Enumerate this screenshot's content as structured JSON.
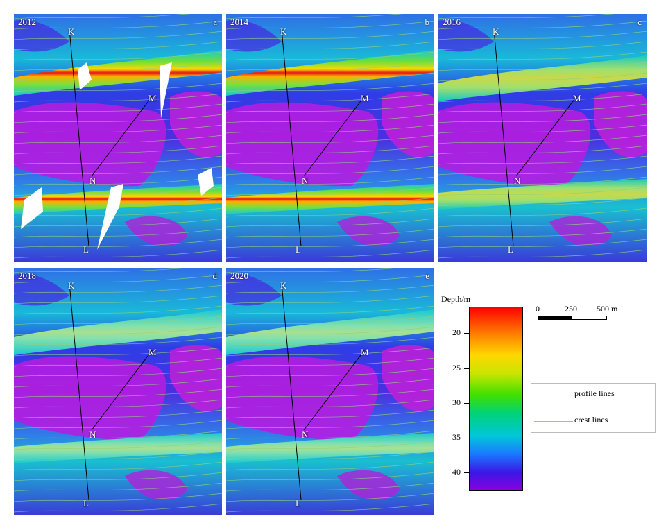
{
  "panels": [
    {
      "year": "2012",
      "letter": "a",
      "labels": {
        "K": "K",
        "L": "L",
        "M": "M",
        "N": "N"
      },
      "style": "ridge",
      "gaps": true
    },
    {
      "year": "2014",
      "letter": "b",
      "labels": {
        "K": "K",
        "L": "L",
        "M": "M",
        "N": "N"
      },
      "style": "ridge",
      "gaps": false
    },
    {
      "year": "2016",
      "letter": "c",
      "labels": {
        "K": "K",
        "L": "L",
        "M": "M",
        "N": "N"
      },
      "style": "rough",
      "gaps": false
    },
    {
      "year": "2018",
      "letter": "d",
      "labels": {
        "K": "K",
        "L": "L",
        "M": "M",
        "N": "N"
      },
      "style": "rough2",
      "gaps": false
    },
    {
      "year": "2020",
      "letter": "e",
      "labels": {
        "K": "K",
        "L": "L",
        "M": "M",
        "N": "N"
      },
      "style": "rough2",
      "gaps": false
    }
  ],
  "colorbar": {
    "title": "Depth/m",
    "ticks": [
      "20",
      "25",
      "30",
      "35",
      "40"
    ],
    "colors": [
      "#ff0000",
      "#ff7a00",
      "#ffd700",
      "#3ee000",
      "#00c8d8",
      "#1a7aff",
      "#3a18e6",
      "#8a00e0"
    ]
  },
  "scalebar": {
    "labels": [
      "0",
      "250",
      "500 m"
    ]
  },
  "legend": {
    "profile_lines": {
      "label": "profile lines",
      "color": "#000000"
    },
    "crest_lines": {
      "label": "crest lines",
      "color": "#8fd17a"
    }
  }
}
